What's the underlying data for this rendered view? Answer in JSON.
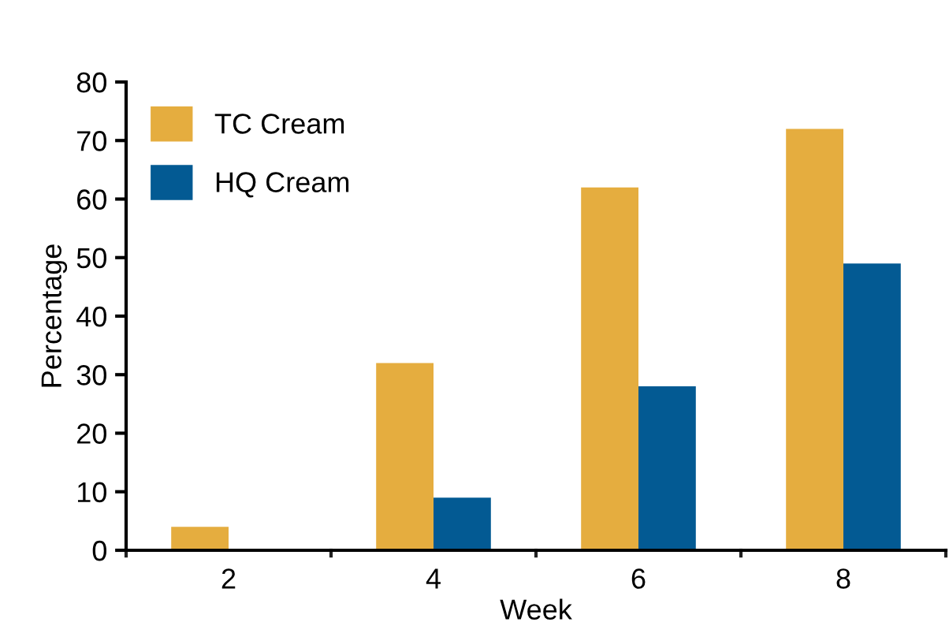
{
  "chart_data": {
    "type": "bar",
    "xlabel": "Week",
    "ylabel": "Percentage",
    "categories": [
      "2",
      "4",
      "6",
      "8"
    ],
    "series": [
      {
        "name": "TC Cream",
        "color": "#e5ad3f",
        "values": [
          4,
          32,
          62,
          72
        ]
      },
      {
        "name": "HQ Cream",
        "color": "#035a93",
        "values": [
          0,
          9,
          28,
          49
        ]
      }
    ],
    "ylim": [
      0,
      80
    ],
    "yticks": [
      0,
      10,
      20,
      30,
      40,
      50,
      60,
      70,
      80
    ],
    "grid": false,
    "legend": "top left"
  }
}
